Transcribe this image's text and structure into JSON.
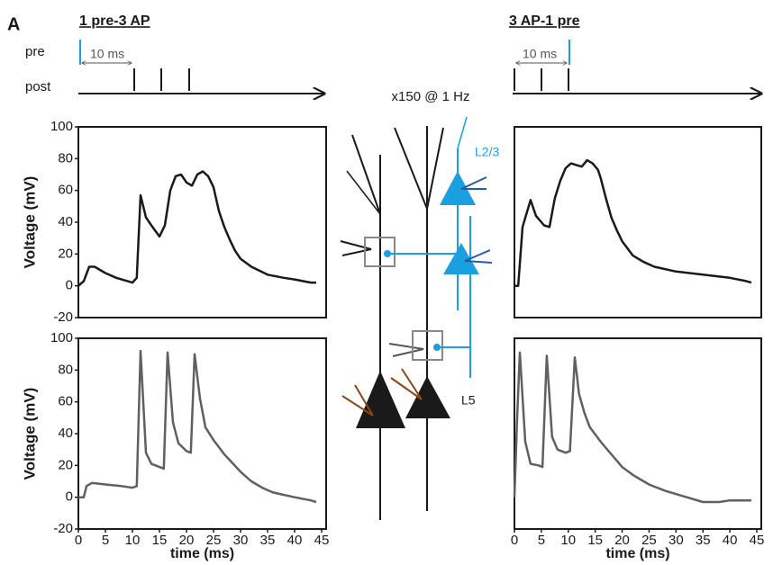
{
  "figure": {
    "panel_label": "A",
    "left_title": "1 pre-3 AP",
    "right_title": "3 AP-1 pre",
    "pre_label": "pre",
    "post_label": "post",
    "left_interval_label": "10 ms",
    "right_interval_label": "10 ms",
    "protocol": "x150 @ 1 Hz",
    "layer_labels": [
      "L2/3",
      "L5"
    ]
  },
  "chart_data": [
    {
      "type": "line",
      "ylabel": "Voltage (mV)",
      "x": [
        0,
        1,
        2,
        3,
        5,
        7,
        10,
        10.8,
        11.5,
        12.5,
        13.5,
        15,
        16,
        17,
        18,
        19,
        20,
        21,
        22,
        23,
        24,
        25,
        26,
        27,
        28,
        29,
        30,
        32,
        35,
        38,
        40,
        43,
        44
      ],
      "series": [
        {
          "color": "#1a1a1a",
          "values": [
            0,
            3,
            12,
            12,
            8,
            5,
            2,
            5,
            57,
            43,
            38,
            31,
            38,
            60,
            69,
            70,
            65,
            63,
            70,
            72,
            69,
            62,
            47,
            37,
            29,
            22,
            17,
            12,
            7,
            5,
            4,
            2,
            2
          ]
        }
      ],
      "xlim": [
        0,
        45
      ],
      "ylim": [
        -20,
        100
      ],
      "yticks": [
        -20,
        0,
        20,
        40,
        60,
        80,
        100
      ]
    },
    {
      "type": "line",
      "x": [
        0,
        0.7,
        1.5,
        3,
        4,
        5.5,
        6.5,
        7.5,
        8.5,
        9.5,
        10.5,
        11.5,
        12.5,
        13.5,
        14.5,
        15.5,
        16,
        17,
        18,
        19,
        20,
        22,
        24,
        26,
        30,
        35,
        40,
        43,
        44
      ],
      "series": [
        {
          "color": "#1a1a1a",
          "values": [
            0,
            0,
            37,
            54,
            44,
            38,
            37,
            55,
            66,
            74,
            77,
            76,
            75,
            79,
            77,
            73,
            68,
            55,
            43,
            35,
            28,
            19,
            15,
            12,
            9,
            7,
            5,
            3,
            2
          ]
        }
      ],
      "xlim": [
        0,
        45
      ],
      "ylim": [
        -20,
        100
      ]
    },
    {
      "type": "line",
      "ylabel": "Voltage (mV)",
      "xlabel": "time (ms)",
      "x": [
        0,
        1,
        1.5,
        2.5,
        5,
        8,
        10,
        10.8,
        11.5,
        12.5,
        13.5,
        15,
        15.8,
        16.5,
        17.5,
        18.5,
        20,
        20.8,
        21.5,
        22.5,
        23.5,
        25,
        27,
        30,
        32,
        34,
        36,
        40,
        43,
        44
      ],
      "series": [
        {
          "color": "#606060",
          "values": [
            0,
            0,
            7,
            9,
            8,
            7,
            6,
            7,
            92,
            28,
            21,
            19,
            18,
            91,
            47,
            34,
            29,
            28,
            90,
            62,
            44,
            36,
            27,
            16,
            10,
            6,
            3,
            0,
            -2,
            -3
          ]
        }
      ],
      "xlim": [
        0,
        45
      ],
      "ylim": [
        -20,
        100
      ],
      "yticks": [
        -20,
        0,
        20,
        40,
        60,
        80,
        100
      ],
      "xticks": [
        0,
        5,
        10,
        15,
        20,
        25,
        30,
        35,
        40,
        45
      ]
    },
    {
      "type": "line",
      "xlabel": "time (ms)",
      "x": [
        0,
        0.5,
        1,
        2,
        3,
        4.5,
        5.2,
        6,
        7,
        8,
        9.5,
        10.3,
        11.2,
        12,
        13,
        14,
        16,
        18,
        20,
        22,
        25,
        28,
        32,
        35,
        38,
        40,
        44
      ],
      "series": [
        {
          "color": "#606060",
          "values": [
            0,
            50,
            91,
            35,
            21,
            20,
            19,
            89,
            38,
            30,
            28,
            29,
            88,
            65,
            53,
            44,
            35,
            27,
            19,
            14,
            8,
            4,
            0,
            -3,
            -3,
            -2,
            -2
          ]
        }
      ],
      "xlim": [
        0,
        45
      ],
      "ylim": [
        -20,
        100
      ],
      "xticks": [
        0,
        5,
        10,
        15,
        20,
        25,
        30,
        35,
        40,
        45
      ]
    }
  ]
}
